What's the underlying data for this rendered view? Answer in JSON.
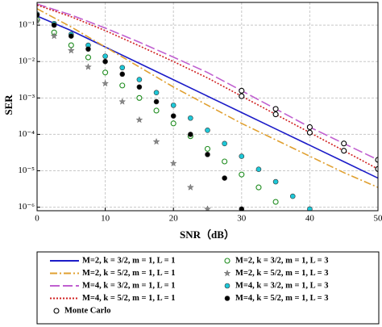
{
  "chart_data": {
    "type": "line",
    "x_label": "SNR（dB）",
    "y_label": "SER",
    "xlim": [
      0,
      50
    ],
    "xticks": [
      0,
      10,
      20,
      30,
      40,
      50
    ],
    "ylim": [
      8e-07,
      0.42
    ],
    "log_y": true,
    "grid": true,
    "yticks": [
      {
        "value": 0.1,
        "label": "10⁻¹"
      },
      {
        "value": 0.01,
        "label": "10⁻²"
      },
      {
        "value": 0.001,
        "label": "10⁻³"
      },
      {
        "value": 0.0001,
        "label": "10⁻⁴"
      },
      {
        "value": 1e-05,
        "label": "10⁻⁵"
      },
      {
        "value": 1e-06,
        "label": "10⁻⁶"
      }
    ],
    "legend": "below",
    "series": [
      {
        "name": "M=2, k = 3/2, m = 1, L = 1",
        "color": "#1c1cc8",
        "dash": "solid",
        "x": [
          0,
          5,
          10,
          15,
          20,
          25,
          30,
          35,
          40,
          45,
          50
        ],
        "values": [
          0.178,
          0.0708,
          0.0251,
          0.00891,
          0.00316,
          0.00112,
          0.000398,
          0.000141,
          5.01e-05,
          1.78e-05,
          6.3e-06
        ]
      },
      {
        "name": "M=2, k = 5/2, m = 1, L = 1",
        "color": "#e0a030",
        "dash": "dashdot",
        "x": [
          0,
          5,
          10,
          15,
          20,
          25,
          30,
          35,
          40,
          45,
          50
        ],
        "values": [
          0.282,
          0.0891,
          0.0251,
          0.00708,
          0.002,
          0.000631,
          0.0002,
          7.08e-05,
          2.51e-05,
          8.9e-06,
          3.5e-06
        ]
      },
      {
        "name": "M=4, k = 3/2, m = 1, L = 1",
        "color": "#c060d0",
        "dash": "longdash",
        "x": [
          0,
          5,
          10,
          15,
          20,
          25,
          30,
          35,
          40,
          45,
          50
        ],
        "values": [
          0.38,
          0.19,
          0.083,
          0.034,
          0.0132,
          0.005,
          0.00158,
          0.0005,
          0.000158,
          5.62e-05,
          2e-05
        ]
      },
      {
        "name": "M=4, k = 5/2, m = 1, L = 1",
        "color": "#d02020",
        "dash": "dot",
        "x": [
          0,
          5,
          10,
          15,
          20,
          25,
          30,
          35,
          40,
          45,
          50
        ],
        "values": [
          0.355,
          0.17,
          0.0708,
          0.0269,
          0.01,
          0.00355,
          0.00112,
          0.000355,
          0.000112,
          3.55e-05,
          1.12e-05
        ]
      },
      {
        "name": "Monte Carlo",
        "color": "#000000",
        "marker": "circle-open",
        "x": [
          30,
          35,
          40,
          45,
          50,
          30,
          35,
          40,
          45,
          50
        ],
        "values": [
          0.00158,
          0.0005,
          0.000158,
          5.62e-05,
          2e-05,
          0.00112,
          0.000355,
          0.000112,
          3.55e-05,
          1.12e-05
        ]
      },
      {
        "name": "M=2, k = 3/2, m = 1, L = 3",
        "color": "#1e8c1e",
        "marker": "circle-open",
        "x": [
          0,
          2.5,
          5,
          7.5,
          10,
          12.5,
          15,
          17.5,
          20,
          22.5,
          25,
          27.5,
          30,
          32.5,
          35
        ],
        "values": [
          0.14,
          0.063,
          0.028,
          0.013,
          0.005,
          0.0022,
          0.001,
          0.00045,
          0.0002,
          8.9e-05,
          4e-05,
          1.8e-05,
          7.9e-06,
          3.5e-06,
          1.4e-06
        ]
      },
      {
        "name": "M=2, k = 5/2, m = 1, L = 3",
        "color": "#888888",
        "marker": "star",
        "x": [
          0,
          2.5,
          5,
          7.5,
          10,
          12.5,
          15,
          17.5,
          20,
          22.5,
          25
        ],
        "values": [
          0.13,
          0.05,
          0.02,
          0.0071,
          0.0025,
          0.00079,
          0.00025,
          6.3e-05,
          1.6e-05,
          3.5e-06,
          8.9e-07
        ]
      },
      {
        "name": "M=4, k = 3/2, m = 1, L = 3",
        "color": "#1ec8d8",
        "marker": "circle",
        "x": [
          0,
          2.5,
          5,
          7.5,
          10,
          12.5,
          15,
          17.5,
          20,
          22.5,
          25,
          27.5,
          30,
          32.5,
          35,
          37.5,
          40
        ],
        "values": [
          0.2,
          0.11,
          0.056,
          0.028,
          0.014,
          0.0068,
          0.0032,
          0.0014,
          0.00063,
          0.00028,
          0.00013,
          5.6e-05,
          2.5e-05,
          1.1e-05,
          5e-06,
          2e-06,
          8.9e-07
        ]
      },
      {
        "name": "M=4, k = 5/2, m = 1, L = 3",
        "color": "#000000",
        "marker": "circle",
        "x": [
          0,
          2.5,
          5,
          7.5,
          10,
          12.5,
          15,
          17.5,
          20,
          22.5,
          25,
          27.5,
          30
        ],
        "values": [
          0.19,
          0.1,
          0.05,
          0.022,
          0.01,
          0.0045,
          0.002,
          0.00079,
          0.00032,
          0.0001,
          2.8e-05,
          6.3e-06,
          8.9e-07
        ]
      }
    ]
  }
}
